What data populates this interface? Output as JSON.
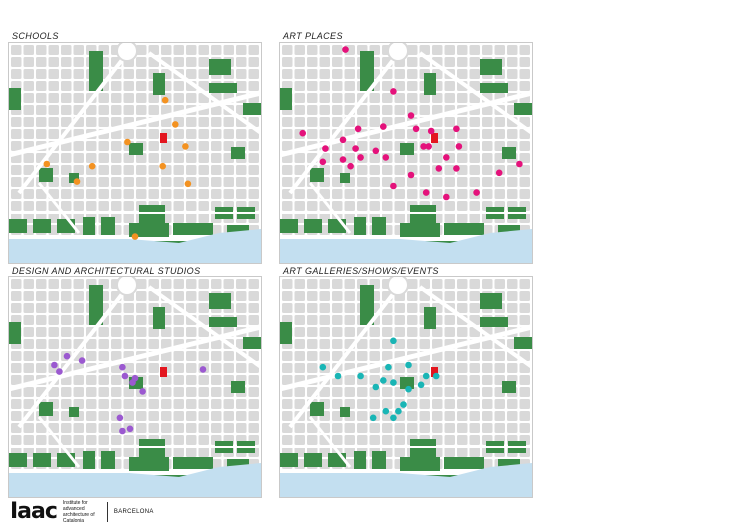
{
  "panels": [
    {
      "title": "SCHOOLS",
      "marker_color": "#f39221",
      "points": [
        [
          0.62,
          0.26
        ],
        [
          0.66,
          0.37
        ],
        [
          0.47,
          0.45
        ],
        [
          0.7,
          0.47
        ],
        [
          0.15,
          0.55
        ],
        [
          0.33,
          0.56
        ],
        [
          0.61,
          0.56
        ],
        [
          0.27,
          0.63
        ],
        [
          0.71,
          0.64
        ],
        [
          0.5,
          0.88
        ]
      ]
    },
    {
      "title": "ART PLACES",
      "marker_color": "#e4127b",
      "points": [
        [
          0.26,
          0.03
        ],
        [
          0.45,
          0.22
        ],
        [
          0.09,
          0.41
        ],
        [
          0.25,
          0.44
        ],
        [
          0.31,
          0.39
        ],
        [
          0.18,
          0.48
        ],
        [
          0.3,
          0.48
        ],
        [
          0.32,
          0.52
        ],
        [
          0.38,
          0.49
        ],
        [
          0.17,
          0.54
        ],
        [
          0.25,
          0.53
        ],
        [
          0.28,
          0.56
        ],
        [
          0.41,
          0.38
        ],
        [
          0.52,
          0.33
        ],
        [
          0.57,
          0.47
        ],
        [
          0.6,
          0.4
        ],
        [
          0.42,
          0.52
        ],
        [
          0.54,
          0.39
        ],
        [
          0.7,
          0.39
        ],
        [
          0.71,
          0.47
        ],
        [
          0.59,
          0.47
        ],
        [
          0.66,
          0.52
        ],
        [
          0.63,
          0.57
        ],
        [
          0.52,
          0.6
        ],
        [
          0.7,
          0.57
        ],
        [
          0.45,
          0.65
        ],
        [
          0.58,
          0.68
        ],
        [
          0.66,
          0.7
        ],
        [
          0.78,
          0.68
        ],
        [
          0.87,
          0.59
        ],
        [
          0.95,
          0.55
        ]
      ]
    },
    {
      "title": "DESIGN AND ARCHITECTURAL STUDIOS",
      "marker_color": "#9b59d0",
      "points": [
        [
          0.23,
          0.36
        ],
        [
          0.29,
          0.38
        ],
        [
          0.18,
          0.4
        ],
        [
          0.2,
          0.43
        ],
        [
          0.45,
          0.41
        ],
        [
          0.46,
          0.45
        ],
        [
          0.5,
          0.46
        ],
        [
          0.49,
          0.48
        ],
        [
          0.53,
          0.52
        ],
        [
          0.77,
          0.42
        ],
        [
          0.44,
          0.64
        ],
        [
          0.48,
          0.69
        ],
        [
          0.45,
          0.7
        ]
      ]
    },
    {
      "title": "ART GALLERIES/SHOWS/EVENTS",
      "marker_color": "#19b5b5",
      "points": [
        [
          0.45,
          0.29
        ],
        [
          0.17,
          0.41
        ],
        [
          0.23,
          0.45
        ],
        [
          0.32,
          0.45
        ],
        [
          0.43,
          0.41
        ],
        [
          0.51,
          0.4
        ],
        [
          0.41,
          0.47
        ],
        [
          0.38,
          0.5
        ],
        [
          0.45,
          0.48
        ],
        [
          0.51,
          0.51
        ],
        [
          0.56,
          0.49
        ],
        [
          0.58,
          0.45
        ],
        [
          0.62,
          0.45
        ],
        [
          0.37,
          0.64
        ],
        [
          0.42,
          0.61
        ],
        [
          0.45,
          0.64
        ],
        [
          0.47,
          0.61
        ],
        [
          0.49,
          0.58
        ]
      ]
    }
  ],
  "colors": {
    "block": "#d9d9d9",
    "park": "#3a8c47",
    "sea": "#c3dff0",
    "road": "#ffffff",
    "landmark": "#e3161f"
  },
  "footer": {
    "logo": "Iaac",
    "institute": "Institute for advanced architecture of Catalonia",
    "city": "BARCELONA"
  }
}
